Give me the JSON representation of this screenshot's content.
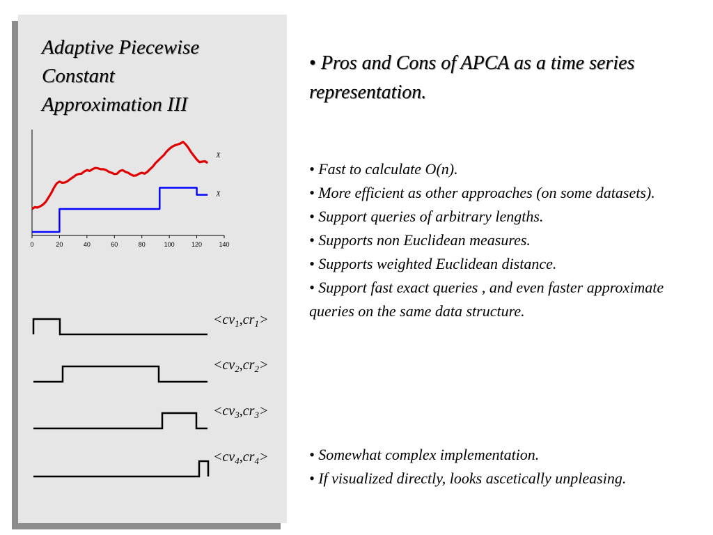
{
  "slide": {
    "title_lines": [
      "Adaptive Piecewise",
      "Constant",
      "Approximation III"
    ],
    "headline": "Pros and Cons of APCA as a time series representation.",
    "bullet": "•",
    "pros": [
      "Fast to calculate O(n).",
      "More efficient as other approaches (on some datasets).",
      "Support queries of arbitrary lengths.",
      "Supports non Euclidean measures.",
      "Supports weighted Euclidean distance.",
      "Support fast exact queries , and even faster approximate queries on the same data structure."
    ],
    "cons": [
      "Somewhat complex implementation.",
      "If visualized directly, looks ascetically unpleasing."
    ]
  },
  "segments": [
    {
      "lt": "<",
      "cv": "cv",
      "cv_sub": "1",
      "comma": ",",
      "cr": "cr",
      "cr_sub": "1",
      "gt": ">"
    },
    {
      "lt": "<",
      "cv": "cv",
      "cv_sub": "2",
      "comma": ",",
      "cr": "cr",
      "cr_sub": "2",
      "gt": ">"
    },
    {
      "lt": "<",
      "cv": "cv",
      "cv_sub": "3",
      "comma": ",",
      "cr": "cr",
      "cr_sub": "3",
      "gt": ">"
    },
    {
      "lt": "<",
      "cv": "cv",
      "cv_sub": "4",
      "comma": ",",
      "cr": "cr",
      "cr_sub": "4",
      "gt": ">"
    }
  ],
  "chart_data": {
    "type": "line",
    "xlim": [
      0,
      140
    ],
    "xticks": [
      "0",
      "20",
      "40",
      "60",
      "80",
      "100",
      "120",
      "140"
    ],
    "grid": false,
    "series": [
      {
        "name": "X",
        "color": "#e00000",
        "x": [
          0,
          2,
          4,
          6,
          8,
          10,
          12,
          14,
          16,
          18,
          20,
          22,
          24,
          26,
          28,
          30,
          32,
          34,
          36,
          38,
          40,
          42,
          44,
          46,
          48,
          50,
          52,
          54,
          56,
          58,
          60,
          62,
          64,
          66,
          68,
          70,
          72,
          74,
          76,
          78,
          80,
          82,
          84,
          86,
          88,
          90,
          92,
          94,
          96,
          98,
          100,
          102,
          104,
          106,
          108,
          110,
          112,
          114,
          116,
          118,
          120,
          122,
          124,
          126,
          128
        ],
        "y": [
          1.3,
          1.4,
          1.38,
          1.45,
          1.55,
          1.7,
          1.95,
          2.2,
          2.5,
          2.75,
          2.85,
          2.78,
          2.8,
          2.88,
          3.0,
          3.1,
          3.22,
          3.28,
          3.3,
          3.42,
          3.5,
          3.45,
          3.55,
          3.62,
          3.6,
          3.55,
          3.55,
          3.5,
          3.4,
          3.35,
          3.28,
          3.3,
          3.45,
          3.5,
          3.4,
          3.35,
          3.25,
          3.18,
          3.2,
          3.3,
          3.35,
          3.3,
          3.4,
          3.55,
          3.7,
          3.9,
          4.05,
          4.2,
          4.35,
          4.55,
          4.7,
          4.82,
          4.9,
          4.95,
          5.0,
          5.1,
          4.95,
          4.75,
          4.5,
          4.3,
          4.1,
          3.95,
          3.98,
          4.0,
          3.9
        ]
      },
      {
        "name": "X",
        "color": "#0000ff",
        "x": [
          0,
          20,
          20,
          93,
          93,
          120,
          120,
          128
        ],
        "y": [
          0.0,
          0.0,
          1.3,
          1.3,
          2.5,
          2.5,
          2.1,
          2.1
        ]
      }
    ]
  }
}
